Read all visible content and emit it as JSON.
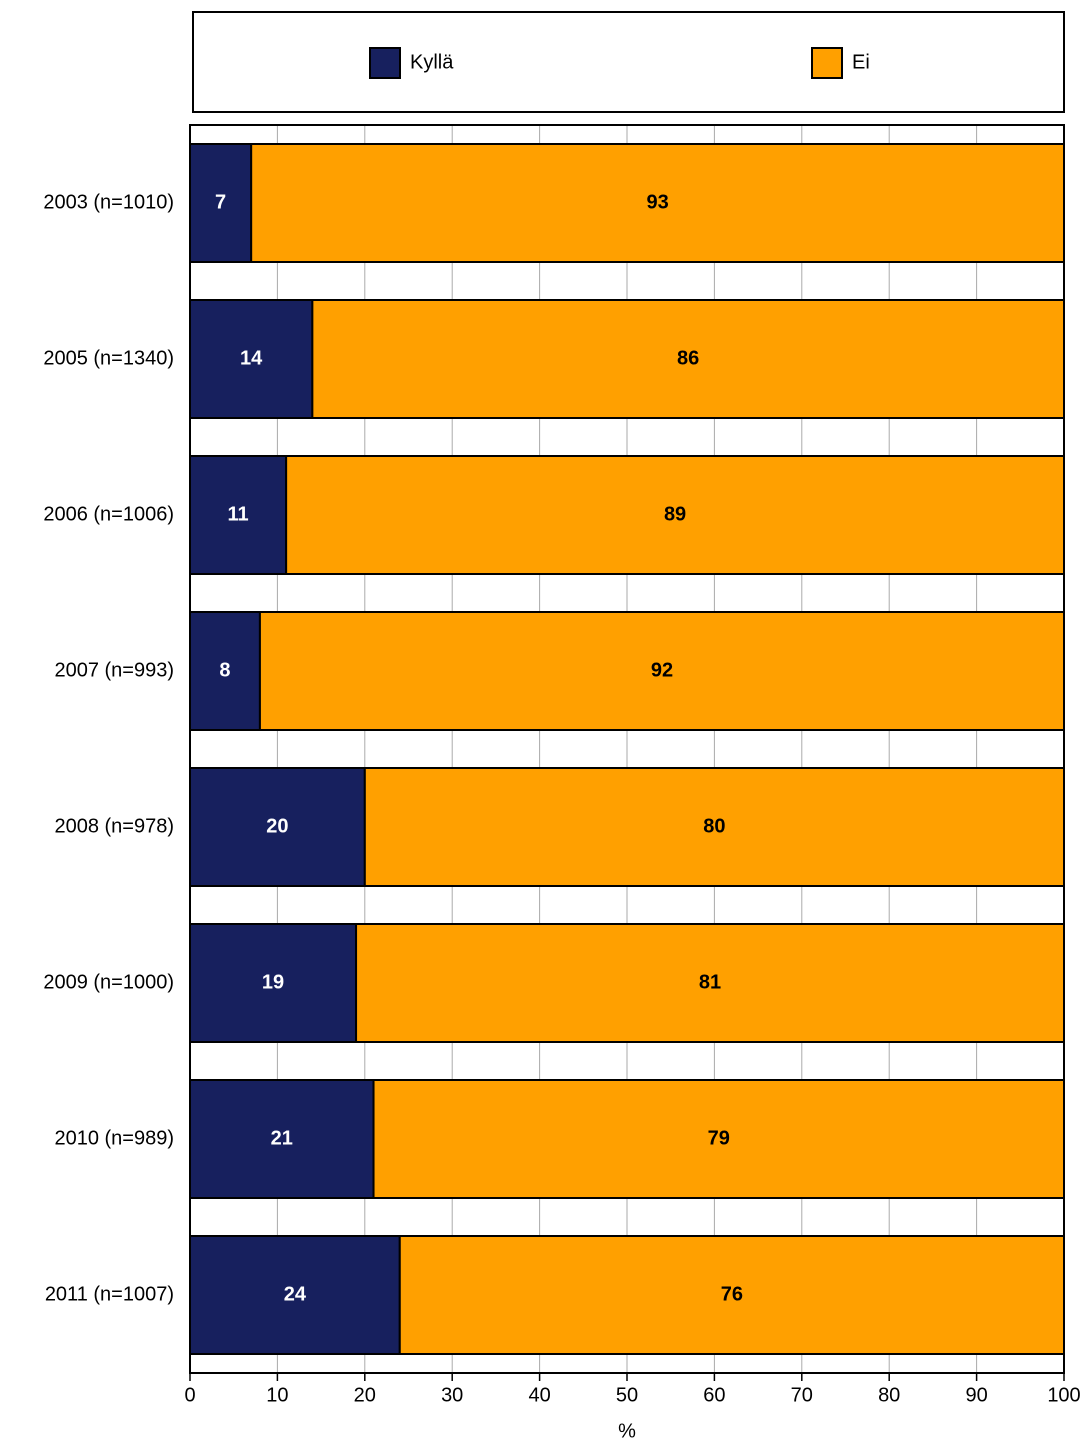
{
  "chart_data": {
    "type": "stacked_barh",
    "categories": [
      "2003 (n=1010)",
      "2005 (n=1340)",
      "2006 (n=1006)",
      "2007 (n=993)",
      "2008 (n=978)",
      "2009 (n=1000)",
      "2010 (n=989)",
      "2011 (n=1007)"
    ],
    "series": [
      {
        "name": "Kyllä",
        "color": "#17205e",
        "values": [
          7,
          14,
          11,
          8,
          20,
          19,
          21,
          24
        ]
      },
      {
        "name": "Ei",
        "color": "#ffa000",
        "values": [
          93,
          86,
          89,
          92,
          80,
          81,
          79,
          76
        ]
      }
    ],
    "xlabel": "%",
    "xlim": [
      0,
      100
    ],
    "xticks": [
      0,
      10,
      20,
      30,
      40,
      50,
      60,
      70,
      80,
      90,
      100
    ],
    "grid": true,
    "legend": "top"
  }
}
